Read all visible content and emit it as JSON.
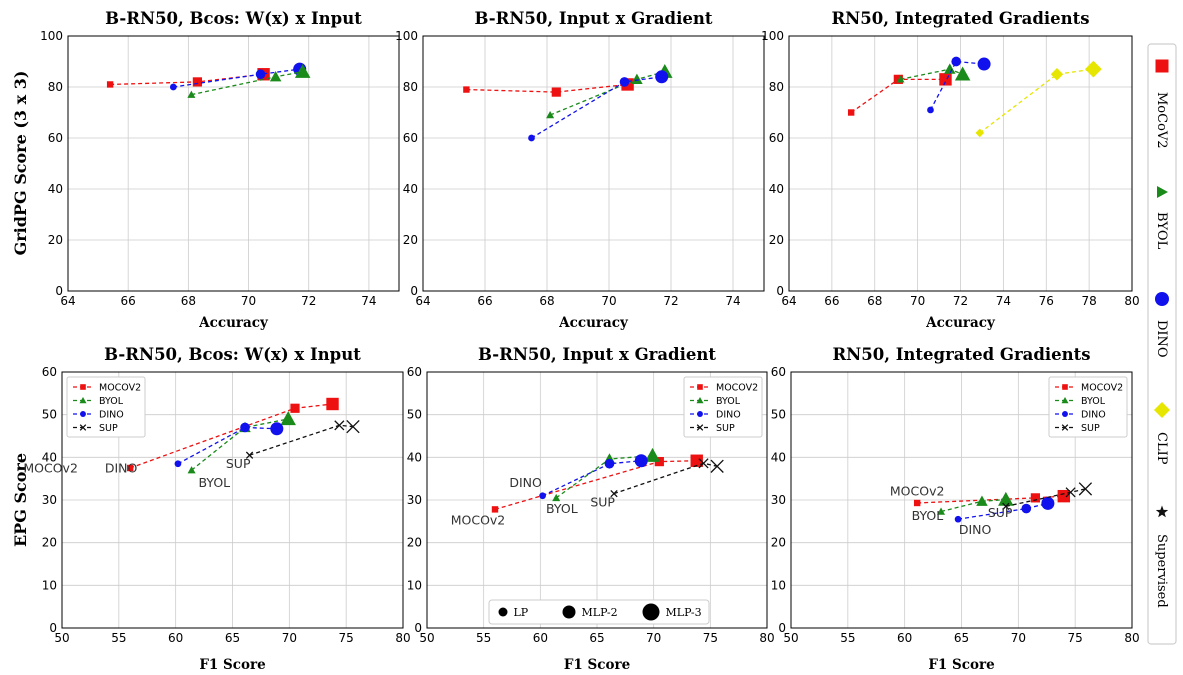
{
  "colors": {
    "MoCoV2": "#ee1111",
    "BYOL": "#1a8a1a",
    "DINO": "#1111ee",
    "CLIP": "#e6e600",
    "SUP": "#111111",
    "label": "#333333"
  },
  "row_titles": {
    "top_ylabel": "GridPG Score (3 x 3)",
    "bottom_ylabel": "EPG Score"
  },
  "legend_right": [
    {
      "name": "MoCoV2",
      "marker": "square",
      "color": "#ee1111"
    },
    {
      "name": "BYOL",
      "marker": "triangle",
      "color": "#1a8a1a"
    },
    {
      "name": "DINO",
      "marker": "circle",
      "color": "#1111ee"
    },
    {
      "name": "CLIP",
      "marker": "diamond",
      "color": "#e6e600"
    },
    {
      "name": "Supervised",
      "marker": "star",
      "color": "#111111"
    }
  ],
  "size_legend": [
    {
      "label": "LP"
    },
    {
      "label": "MLP-2"
    },
    {
      "label": "MLP-3"
    }
  ],
  "chart_data": [
    {
      "type": "line",
      "title": "B-RN50, Bcos: W(x) x Input",
      "xlabel": "Accuracy",
      "ylabel": "GridPG Score (3 x 3)",
      "xlim": [
        64,
        75
      ],
      "ylim": [
        0,
        100
      ],
      "xticks": [
        64,
        66,
        68,
        70,
        72,
        74
      ],
      "yticks": [
        0,
        20,
        40,
        60,
        80,
        100
      ],
      "series": [
        {
          "name": "MoCoV2",
          "color": "#ee1111",
          "marker": "square",
          "points": [
            [
              65.4,
              81
            ],
            [
              68.3,
              82
            ],
            [
              70.5,
              85
            ]
          ]
        },
        {
          "name": "DINO",
          "color": "#1111ee",
          "marker": "circle",
          "points": [
            [
              67.5,
              80
            ],
            [
              70.4,
              85
            ],
            [
              71.7,
              87
            ]
          ]
        },
        {
          "name": "BYOL",
          "color": "#1a8a1a",
          "marker": "triangle",
          "points": [
            [
              68.1,
              77
            ],
            [
              70.9,
              84
            ],
            [
              71.8,
              86
            ]
          ]
        }
      ]
    },
    {
      "type": "line",
      "title": "B-RN50, Input x Gradient",
      "xlabel": "Accuracy",
      "ylabel": "",
      "xlim": [
        64,
        75
      ],
      "ylim": [
        0,
        100
      ],
      "xticks": [
        64,
        66,
        68,
        70,
        72,
        74
      ],
      "yticks": [
        0,
        20,
        40,
        60,
        80,
        100
      ],
      "series": [
        {
          "name": "MoCoV2",
          "color": "#ee1111",
          "marker": "square",
          "points": [
            [
              65.4,
              79
            ],
            [
              68.3,
              78
            ],
            [
              70.6,
              81
            ]
          ]
        },
        {
          "name": "BYOL",
          "color": "#1a8a1a",
          "marker": "triangle",
          "points": [
            [
              68.1,
              69
            ],
            [
              70.9,
              83
            ],
            [
              71.8,
              86
            ]
          ]
        },
        {
          "name": "DINO",
          "color": "#1111ee",
          "marker": "circle",
          "points": [
            [
              67.5,
              60
            ],
            [
              70.5,
              82
            ],
            [
              71.7,
              84
            ]
          ]
        }
      ]
    },
    {
      "type": "line",
      "title": "RN50, Integrated Gradients",
      "xlabel": "Accuracy",
      "ylabel": "",
      "xlim": [
        64,
        80
      ],
      "ylim": [
        0,
        100
      ],
      "xticks": [
        64,
        66,
        68,
        70,
        72,
        74,
        76,
        78,
        80
      ],
      "yticks": [
        0,
        20,
        40,
        60,
        80,
        100
      ],
      "series": [
        {
          "name": "MoCoV2",
          "color": "#ee1111",
          "marker": "square",
          "points": [
            [
              66.9,
              70
            ],
            [
              69.1,
              83
            ],
            [
              71.3,
              83
            ]
          ]
        },
        {
          "name": "BYOL",
          "color": "#1a8a1a",
          "marker": "triangle",
          "points": [
            [
              69.2,
              83
            ],
            [
              71.5,
              87
            ],
            [
              72.1,
              85
            ]
          ]
        },
        {
          "name": "DINO",
          "color": "#1111ee",
          "marker": "circle",
          "points": [
            [
              70.6,
              71
            ],
            [
              71.8,
              90
            ],
            [
              73.1,
              89
            ]
          ]
        },
        {
          "name": "CLIP",
          "color": "#e6e600",
          "marker": "diamond",
          "points": [
            [
              72.9,
              62
            ],
            [
              76.5,
              85
            ],
            [
              78.2,
              87
            ]
          ]
        }
      ]
    },
    {
      "type": "line",
      "title": "B-RN50, Bcos: W(x) x Input",
      "xlabel": "F1 Score",
      "ylabel": "EPG Score",
      "xlim": [
        50,
        80
      ],
      "ylim": [
        0,
        60
      ],
      "xticks": [
        50,
        55,
        60,
        65,
        70,
        75,
        80
      ],
      "yticks": [
        0,
        10,
        20,
        30,
        40,
        50,
        60
      ],
      "legend": {
        "position": "top-left",
        "entries": [
          "MOCOV2",
          "BYOL",
          "DINO",
          "SUP"
        ]
      },
      "series": [
        {
          "name": "MOCOV2",
          "color": "#ee1111",
          "marker": "square",
          "points": [
            [
              56.0,
              37.5
            ],
            [
              70.5,
              51.5
            ],
            [
              73.8,
              52.5
            ]
          ]
        },
        {
          "name": "BYOL",
          "color": "#1a8a1a",
          "marker": "triangle",
          "points": [
            [
              61.4,
              37.0
            ],
            [
              66.1,
              47.0
            ],
            [
              69.9,
              49.0
            ]
          ]
        },
        {
          "name": "DINO",
          "color": "#1111ee",
          "marker": "circle",
          "points": [
            [
              60.2,
              38.5
            ],
            [
              66.1,
              47.0
            ],
            [
              68.9,
              46.7
            ]
          ]
        },
        {
          "name": "SUP",
          "color": "#111111",
          "marker": "x",
          "points": [
            [
              66.5,
              40.5
            ],
            [
              74.4,
              47.5
            ],
            [
              75.6,
              47.2
            ]
          ]
        }
      ],
      "annotations": [
        {
          "text": "MOCOv2",
          "x": 56.0,
          "y": 37.5,
          "dx": -7,
          "dy": 1
        },
        {
          "text": "DINO",
          "x": 60.2,
          "y": 38.5,
          "dx": -5,
          "dy": 2
        },
        {
          "text": "BYOL",
          "x": 61.4,
          "y": 37.0,
          "dx": 2,
          "dy": 4
        },
        {
          "text": "SUP",
          "x": 66.5,
          "y": 40.5,
          "dx": -1,
          "dy": 3
        }
      ]
    },
    {
      "type": "line",
      "title": "B-RN50, Input x Gradient",
      "xlabel": "F1 Score",
      "ylabel": "",
      "xlim": [
        50,
        80
      ],
      "ylim": [
        0,
        60
      ],
      "xticks": [
        50,
        55,
        60,
        65,
        70,
        75,
        80
      ],
      "yticks": [
        0,
        10,
        20,
        30,
        40,
        50,
        60
      ],
      "legend": {
        "position": "top-right",
        "entries": [
          "MOCOV2",
          "BYOL",
          "DINO",
          "SUP"
        ]
      },
      "series": [
        {
          "name": "MOCOV2",
          "color": "#ee1111",
          "marker": "square",
          "points": [
            [
              56.0,
              27.8
            ],
            [
              70.5,
              39.0
            ],
            [
              73.8,
              39.2
            ]
          ]
        },
        {
          "name": "BYOL",
          "color": "#1a8a1a",
          "marker": "triangle",
          "points": [
            [
              61.4,
              30.5
            ],
            [
              66.1,
              39.6
            ],
            [
              69.9,
              40.4
            ]
          ]
        },
        {
          "name": "DINO",
          "color": "#1111ee",
          "marker": "circle",
          "points": [
            [
              60.2,
              31.0
            ],
            [
              66.1,
              38.5
            ],
            [
              68.9,
              39.2
            ]
          ]
        },
        {
          "name": "SUP",
          "color": "#111111",
          "marker": "x",
          "points": [
            [
              66.5,
              31.5
            ],
            [
              74.4,
              38.6
            ],
            [
              75.6,
              37.9
            ]
          ]
        }
      ],
      "annotations": [
        {
          "text": "DINO",
          "x": 60.2,
          "y": 31.0,
          "dx": -1.5,
          "dy": -2
        },
        {
          "text": "BYOL",
          "x": 61.4,
          "y": 30.5,
          "dx": 0.5,
          "dy": 3.5
        },
        {
          "text": "SUP",
          "x": 66.5,
          "y": 31.5,
          "dx": -1,
          "dy": 3
        },
        {
          "text": "MOCOv2",
          "x": 56.0,
          "y": 27.8,
          "dx": -1.5,
          "dy": 3.5
        }
      ],
      "size_legend": true
    },
    {
      "type": "line",
      "title": "RN50, Integrated Gradients",
      "xlabel": "F1 Score",
      "ylabel": "",
      "xlim": [
        50,
        80
      ],
      "ylim": [
        0,
        60
      ],
      "xticks": [
        50,
        55,
        60,
        65,
        70,
        75,
        80
      ],
      "yticks": [
        0,
        10,
        20,
        30,
        40,
        50,
        60
      ],
      "legend": {
        "position": "top-right",
        "entries": [
          "MOCOV2",
          "BYOL",
          "DINO",
          "SUP"
        ]
      },
      "series": [
        {
          "name": "MOCOV2",
          "color": "#ee1111",
          "marker": "square",
          "points": [
            [
              61.1,
              29.3
            ],
            [
              71.5,
              30.5
            ],
            [
              74.0,
              30.9
            ]
          ]
        },
        {
          "name": "BYOL",
          "color": "#1a8a1a",
          "marker": "triangle",
          "points": [
            [
              63.2,
              27.3
            ],
            [
              66.8,
              29.7
            ],
            [
              68.9,
              30.1
            ]
          ]
        },
        {
          "name": "DINO",
          "color": "#1111ee",
          "marker": "circle",
          "points": [
            [
              64.7,
              25.5
            ],
            [
              70.7,
              28.0
            ],
            [
              72.6,
              29.2
            ]
          ]
        },
        {
          "name": "SUP",
          "color": "#111111",
          "marker": "x",
          "points": [
            [
              68.9,
              28.5
            ],
            [
              74.6,
              31.8
            ],
            [
              75.9,
              32.6
            ]
          ]
        }
      ],
      "annotations": [
        {
          "text": "MOCOv2",
          "x": 61.1,
          "y": 29.3,
          "dx": 0,
          "dy": -1.8
        },
        {
          "text": "BYOL",
          "x": 63.2,
          "y": 27.3,
          "dx": -1.2,
          "dy": 2.0
        },
        {
          "text": "DINO",
          "x": 64.7,
          "y": 25.5,
          "dx": 1.5,
          "dy": 3.5
        },
        {
          "text": "SUP",
          "x": 68.9,
          "y": 28.5,
          "dx": -0.5,
          "dy": 2.5
        }
      ]
    }
  ]
}
